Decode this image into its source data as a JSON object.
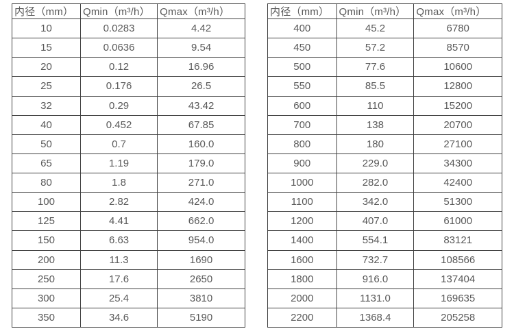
{
  "chart_data": [
    {
      "type": "table",
      "headers": [
        "内径（mm）",
        "Qmin（m³/h）",
        "Qmax（m³/h）"
      ],
      "rows": [
        [
          "10",
          "0.0283",
          "4.42"
        ],
        [
          "15",
          "0.0636",
          "9.54"
        ],
        [
          "20",
          "0.12",
          "16.96"
        ],
        [
          "25",
          "0.176",
          "26.5"
        ],
        [
          "32",
          "0.29",
          "43.42"
        ],
        [
          "40",
          "0.452",
          "67.85"
        ],
        [
          "50",
          "0.7",
          "160.0"
        ],
        [
          "65",
          "1.19",
          "179.0"
        ],
        [
          "80",
          "1.8",
          "271.0"
        ],
        [
          "100",
          "2.82",
          "424.0"
        ],
        [
          "125",
          "4.41",
          "662.0"
        ],
        [
          "150",
          "6.63",
          "954.0"
        ],
        [
          "200",
          "11.3",
          "1690"
        ],
        [
          "250",
          "17.6",
          "2650"
        ],
        [
          "300",
          "25.4",
          "3810"
        ],
        [
          "350",
          "34.6",
          "5190"
        ]
      ]
    },
    {
      "type": "table",
      "headers": [
        "内径（mm）",
        "Qmin（m³/h）",
        "Qmax（m³/h）"
      ],
      "rows": [
        [
          "400",
          "45.2",
          "6780"
        ],
        [
          "450",
          "57.2",
          "8570"
        ],
        [
          "500",
          "77.6",
          "10600"
        ],
        [
          "550",
          "85.5",
          "12800"
        ],
        [
          "600",
          "110",
          "15200"
        ],
        [
          "700",
          "138",
          "20700"
        ],
        [
          "800",
          "180",
          "27100"
        ],
        [
          "900",
          "229.0",
          "34300"
        ],
        [
          "1000",
          "282.0",
          "42400"
        ],
        [
          "1100",
          "342.0",
          "51300"
        ],
        [
          "1200",
          "407.0",
          "61000"
        ],
        [
          "1400",
          "554.1",
          "83121"
        ],
        [
          "1600",
          "732.7",
          "108566"
        ],
        [
          "1800",
          "916.0",
          "137404"
        ],
        [
          "2000",
          "1131.0",
          "169635"
        ],
        [
          "2200",
          "1368.4",
          "205258"
        ]
      ]
    }
  ],
  "colors": {
    "background": "#ffffff",
    "border": "#3f3f3f",
    "text": "#595959"
  }
}
